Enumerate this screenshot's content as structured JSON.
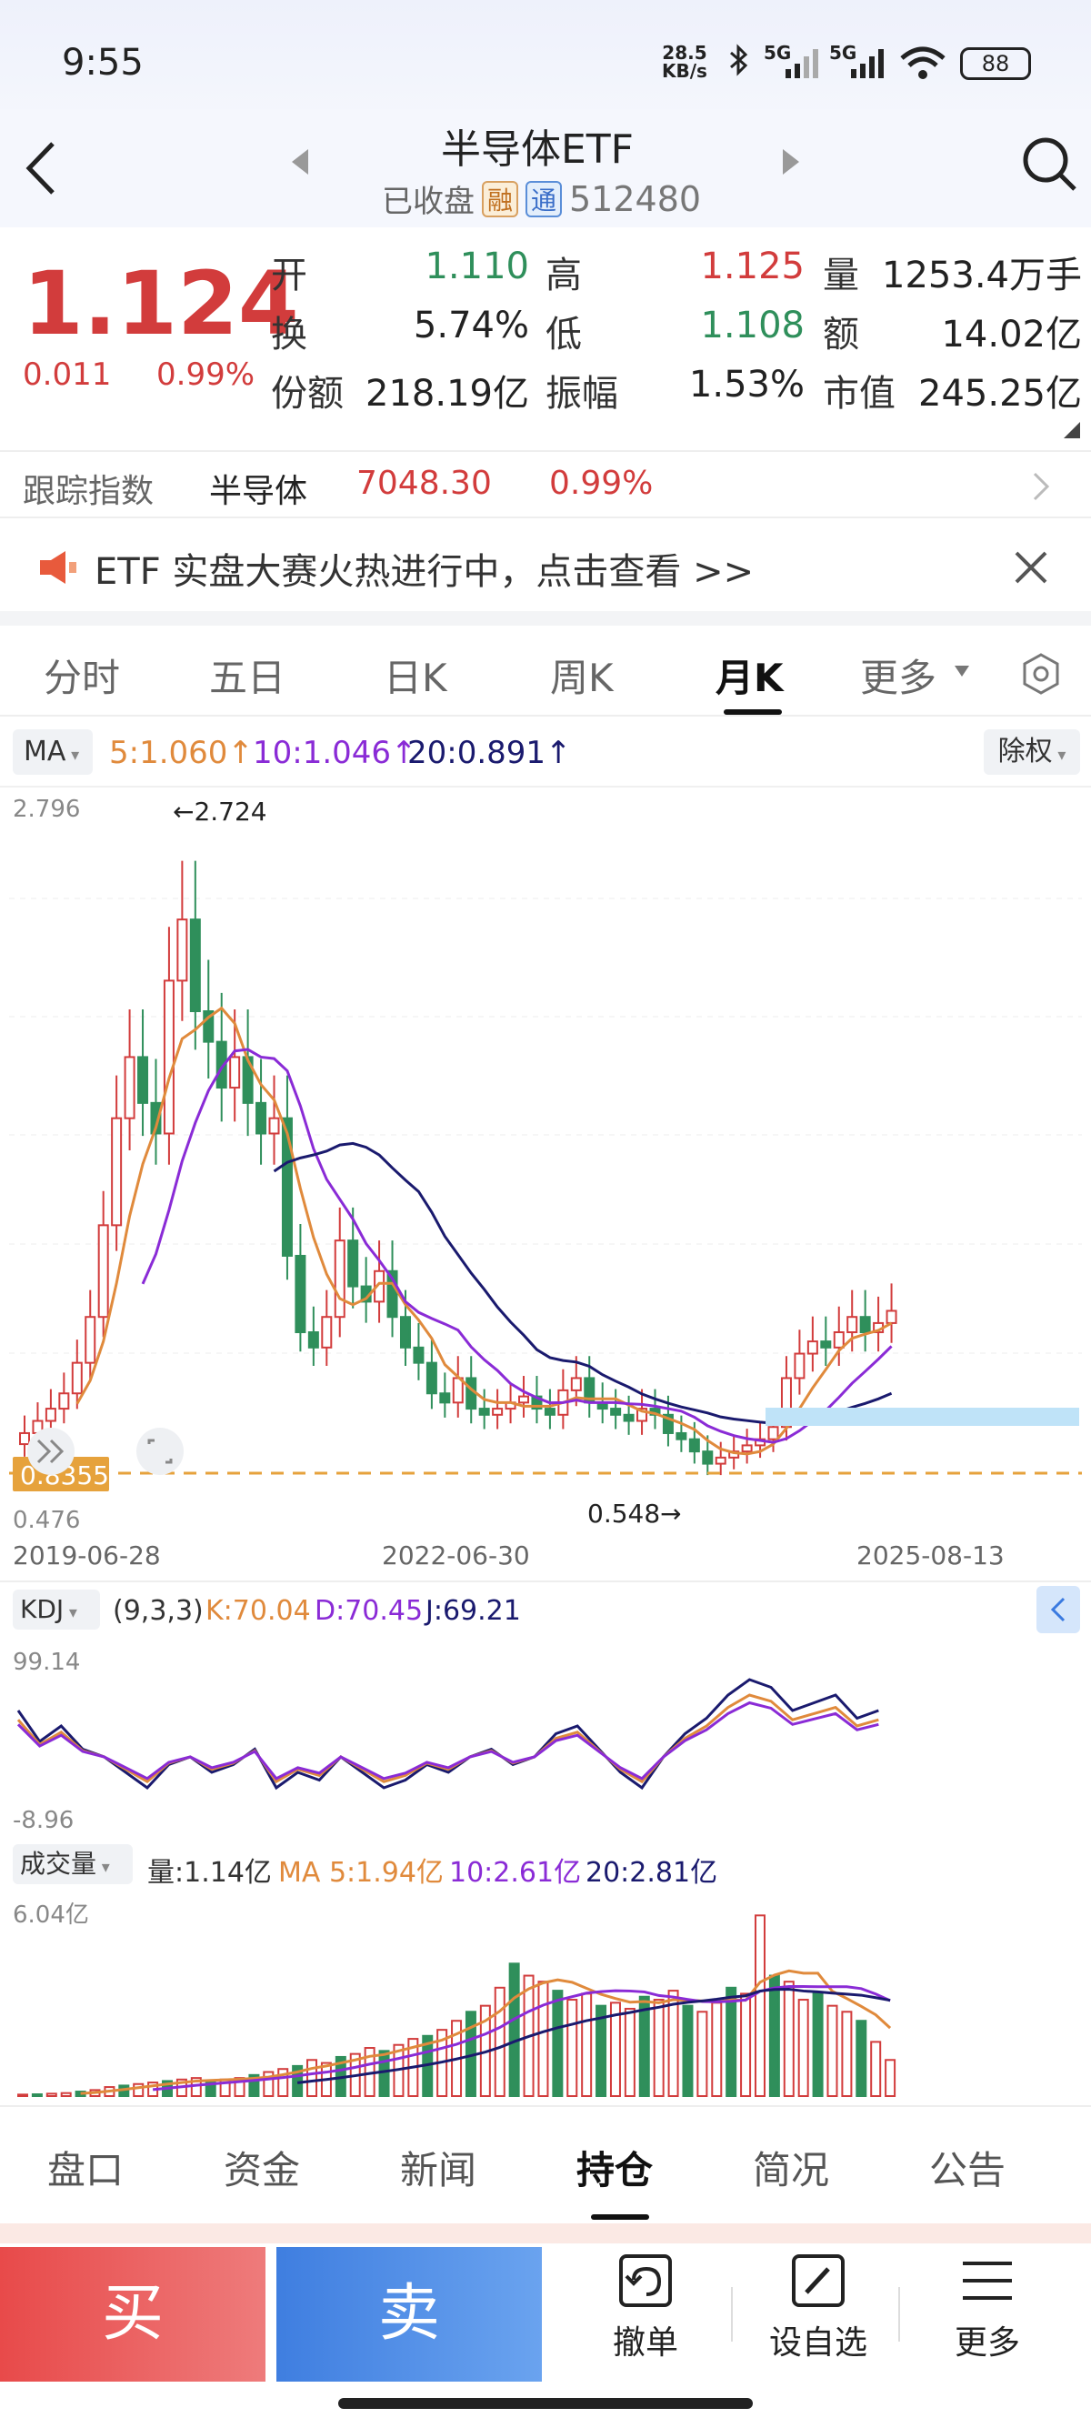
{
  "status_bar": {
    "time": "9:55",
    "net_speed_top": "28.5",
    "net_speed_bottom": "KB/s",
    "sig1": "5G",
    "sig2": "5G",
    "battery": "88"
  },
  "header": {
    "title": "半导体ETF",
    "status": "已收盘",
    "tag1": "融",
    "tag2": "通",
    "code": "512480"
  },
  "quote": {
    "price": "1.124",
    "change": "0.011",
    "change_pct": "0.99%",
    "rows": [
      {
        "l1": "开",
        "v1": "1.110",
        "l2": "高",
        "v2": "1.125",
        "l3": "量",
        "v3": "1253.4万手"
      },
      {
        "l1": "换",
        "v1": "5.74%",
        "l2": "低",
        "v2": "1.108",
        "l3": "额",
        "v3": "14.02亿"
      },
      {
        "l1": "份额",
        "v1": "218.19亿",
        "l2": "振幅",
        "v2": "1.53%",
        "l3": "市值",
        "v3": "245.25亿"
      }
    ]
  },
  "tracking": {
    "label": "跟踪指数",
    "name": "半导体",
    "value": "7048.30",
    "pct": "0.99%"
  },
  "banner": {
    "text": "ETF 实盘大赛火热进行中，点击查看 >>"
  },
  "chart_tabs": [
    "分时",
    "五日",
    "日K",
    "周K",
    "月K",
    "更多"
  ],
  "active_tab": "月K",
  "ma": {
    "selector": "MA",
    "ma5": "5:1.060↑",
    "ma10": "10:1.046↑",
    "ma20": "20:0.891↑",
    "adjust": "除权"
  },
  "price_axis": {
    "top": "2.796",
    "bottom": "0.476",
    "high_label": "←2.724",
    "low_label": "0.548→",
    "current_label": "0.8355"
  },
  "date_axis": [
    "2019-06-28",
    "2022-06-30",
    "2025-08-13"
  ],
  "kdj": {
    "selector": "KDJ",
    "params": "(9,3,3)",
    "k": "K:70.04",
    "d": "D:70.45",
    "j": "J:69.21",
    "top": "99.14",
    "bottom": "-8.96"
  },
  "volume": {
    "selector": "成交量",
    "vol": "量:1.14亿",
    "ma5": "MA 5:1.94亿",
    "ma10": "10:2.61亿",
    "ma20": "20:2.81亿",
    "top": "6.04亿"
  },
  "bottom_tabs": [
    "盘口",
    "资金",
    "新闻",
    "持仓",
    "简况",
    "公告"
  ],
  "active_bottom_tab": "持仓",
  "actions": {
    "buy": "买",
    "sell": "卖",
    "cancel": "撤单",
    "watch": "设自选",
    "more": "更多"
  },
  "chart_data": {
    "type": "candlestick",
    "series_colors": {
      "up": "#d23c3c",
      "down": "#2f8f5b",
      "ma5": "#e08a3c",
      "ma10": "#8a2bd6",
      "ma20": "#1a1a6e"
    },
    "ylim": [
      0.476,
      2.796
    ],
    "high": 2.724,
    "low": 0.548,
    "kdj_ylim": [
      -8.96,
      99.14
    ],
    "vol_max": 6.04
  }
}
